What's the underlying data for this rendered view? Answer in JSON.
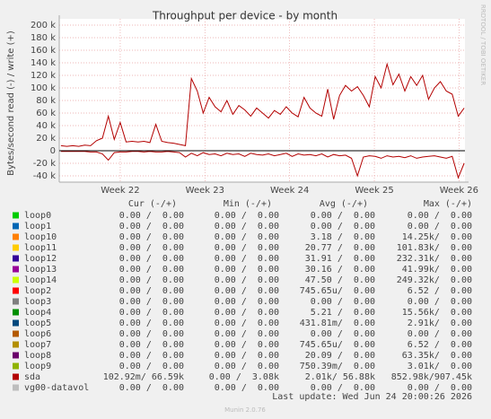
{
  "chart_data": {
    "type": "line",
    "title": "Throughput per device - by month",
    "y_label": "Bytes/second read (-) / write (+)",
    "side_label": "RRDTOOL / TOBI OETIKER",
    "grid": true,
    "zero_line": true,
    "xlim": [
      21.28,
      26.07
    ],
    "xticks": [
      {
        "value": 22,
        "label": "Week 22"
      },
      {
        "value": 23,
        "label": "Week 23"
      },
      {
        "value": 24,
        "label": "Week 24"
      },
      {
        "value": 25,
        "label": "Week 25"
      },
      {
        "value": 26,
        "label": "Week 26"
      }
    ],
    "ylim": [
      -50000,
      210000
    ],
    "yticks": [
      {
        "value": -40000,
        "label": "-40 k"
      },
      {
        "value": -20000,
        "label": "-20 k"
      },
      0,
      {
        "value": 20000,
        "label": "20 k"
      },
      {
        "value": 40000,
        "label": "40 k"
      },
      {
        "value": 60000,
        "label": "60 k"
      },
      {
        "value": 80000,
        "label": "80 k"
      },
      {
        "value": 100000,
        "label": "100 k"
      },
      {
        "value": 120000,
        "label": "120 k"
      },
      {
        "value": 140000,
        "label": "140 k"
      },
      {
        "value": 160000,
        "label": "160 k"
      },
      {
        "value": 180000,
        "label": "180 k"
      },
      {
        "value": 200000,
        "label": "200 k"
      }
    ],
    "x": [
      21.3,
      21.37,
      21.44,
      21.51,
      21.58,
      21.65,
      21.72,
      21.79,
      21.86,
      21.93,
      22.0,
      22.07,
      22.14,
      22.21,
      22.28,
      22.35,
      22.42,
      22.49,
      22.56,
      22.63,
      22.7,
      22.77,
      22.84,
      22.91,
      22.98,
      23.05,
      23.12,
      23.19,
      23.26,
      23.33,
      23.4,
      23.47,
      23.54,
      23.61,
      23.68,
      23.75,
      23.82,
      23.89,
      23.96,
      24.03,
      24.1,
      24.17,
      24.24,
      24.31,
      24.38,
      24.45,
      24.52,
      24.59,
      24.66,
      24.73,
      24.8,
      24.87,
      24.94,
      25.01,
      25.08,
      25.15,
      25.22,
      25.29,
      25.36,
      25.43,
      25.5,
      25.57,
      25.64,
      25.71,
      25.78,
      25.85,
      25.92,
      25.99,
      26.06
    ],
    "series": [
      {
        "color": "#b30000",
        "values": [
          8000,
          7000,
          8000,
          7000,
          9000,
          8000,
          16000,
          20000,
          55000,
          18000,
          45000,
          14000,
          15000,
          14000,
          15000,
          13000,
          42000,
          15000,
          13000,
          12000,
          10000,
          8000,
          115000,
          95000,
          60000,
          85000,
          70000,
          62000,
          80000,
          58000,
          72000,
          65000,
          55000,
          68000,
          60000,
          52000,
          64000,
          58000,
          70000,
          60000,
          54000,
          85000,
          68000,
          60000,
          55000,
          98000,
          50000,
          88000,
          104000,
          95000,
          102000,
          88000,
          70000,
          118000,
          100000,
          138000,
          105000,
          122000,
          95000,
          118000,
          104000,
          120000,
          82000,
          100000,
          110000,
          95000,
          90000,
          55000,
          68000
        ]
      },
      {
        "color": "#b30000",
        "values": [
          -1000,
          -1000,
          -1000,
          -1000,
          -1000,
          -2000,
          -2000,
          -5000,
          -15000,
          -3000,
          -2000,
          -2000,
          -1000,
          -1000,
          -2000,
          -1000,
          -2000,
          -2000,
          -1000,
          -2000,
          -3000,
          -10000,
          -4000,
          -8000,
          -3000,
          -6000,
          -5000,
          -8000,
          -4000,
          -6000,
          -5000,
          -9000,
          -4000,
          -6000,
          -7000,
          -5000,
          -8000,
          -6000,
          -4000,
          -9000,
          -5000,
          -7000,
          -6000,
          -8000,
          -5000,
          -10000,
          -6000,
          -8000,
          -7000,
          -12000,
          -40000,
          -10000,
          -8000,
          -9000,
          -12000,
          -8000,
          -10000,
          -9000,
          -11000,
          -8000,
          -12000,
          -10000,
          -9000,
          -8000,
          -10000,
          -12000,
          -9000,
          -43000,
          -20000
        ]
      }
    ]
  },
  "legend_table": {
    "headers": [
      "Cur (-/+)",
      "Min (-/+)",
      "Avg (-/+)",
      "Max (-/+)"
    ],
    "rows": [
      {
        "name": "loop0",
        "color": "#00cc00",
        "cells": [
          "0.00 /  0.00",
          "0.00 /  0.00",
          "0.00 /  0.00",
          "0.00 /  0.00"
        ]
      },
      {
        "name": "loop1",
        "color": "#0066b3",
        "cells": [
          "0.00 /  0.00",
          "0.00 /  0.00",
          "0.00 /  0.00",
          "0.00 /  0.00"
        ]
      },
      {
        "name": "loop10",
        "color": "#ff8000",
        "cells": [
          "0.00 /  0.00",
          "0.00 /  0.00",
          "3.18 /  0.00",
          "14.25k/  0.00"
        ]
      },
      {
        "name": "loop11",
        "color": "#ffcc00",
        "cells": [
          "0.00 /  0.00",
          "0.00 /  0.00",
          "20.77 /  0.00",
          "101.83k/  0.00"
        ]
      },
      {
        "name": "loop12",
        "color": "#330099",
        "cells": [
          "0.00 /  0.00",
          "0.00 /  0.00",
          "31.91 /  0.00",
          "232.31k/  0.00"
        ]
      },
      {
        "name": "loop13",
        "color": "#990099",
        "cells": [
          "0.00 /  0.00",
          "0.00 /  0.00",
          "30.16 /  0.00",
          "41.99k/  0.00"
        ]
      },
      {
        "name": "loop14",
        "color": "#ccff00",
        "cells": [
          "0.00 /  0.00",
          "0.00 /  0.00",
          "47.50 /  0.00",
          "249.32k/  0.00"
        ]
      },
      {
        "name": "loop2",
        "color": "#ff0000",
        "cells": [
          "0.00 /  0.00",
          "0.00 /  0.00",
          "745.65u/  0.00",
          "6.52 /  0.00"
        ]
      },
      {
        "name": "loop3",
        "color": "#808080",
        "cells": [
          "0.00 /  0.00",
          "0.00 /  0.00",
          "0.00 /  0.00",
          "0.00 /  0.00"
        ]
      },
      {
        "name": "loop4",
        "color": "#008f00",
        "cells": [
          "0.00 /  0.00",
          "0.00 /  0.00",
          "5.21 /  0.00",
          "15.56k/  0.00"
        ]
      },
      {
        "name": "loop5",
        "color": "#00487d",
        "cells": [
          "0.00 /  0.00",
          "0.00 /  0.00",
          "431.81m/  0.00",
          "2.91k/  0.00"
        ]
      },
      {
        "name": "loop6",
        "color": "#b35a00",
        "cells": [
          "0.00 /  0.00",
          "0.00 /  0.00",
          "0.00 /  0.00",
          "0.00 /  0.00"
        ]
      },
      {
        "name": "loop7",
        "color": "#b38f00",
        "cells": [
          "0.00 /  0.00",
          "0.00 /  0.00",
          "745.65u/  0.00",
          "6.52 /  0.00"
        ]
      },
      {
        "name": "loop8",
        "color": "#6b006b",
        "cells": [
          "0.00 /  0.00",
          "0.00 /  0.00",
          "20.09 /  0.00",
          "63.35k/  0.00"
        ]
      },
      {
        "name": "loop9",
        "color": "#8fb300",
        "cells": [
          "0.00 /  0.00",
          "0.00 /  0.00",
          "750.39m/  0.00",
          "3.01k/  0.00"
        ]
      },
      {
        "name": "sda",
        "color": "#b30000",
        "cells": [
          "102.92m/ 66.59k",
          "0.00 /  3.08k",
          "2.01k/ 56.88k",
          "852.98k/907.45k"
        ]
      },
      {
        "name": "vg00-datavol",
        "color": "#bebebe",
        "cells": [
          "0.00 /  0.00",
          "0.00 /  0.00",
          "0.00 /  0.00",
          "0.00 /  0.00"
        ]
      }
    ]
  },
  "last_update": "Last update: Wed Jun 24 20:00:26 2026",
  "footer": "Munin 2.0.76"
}
